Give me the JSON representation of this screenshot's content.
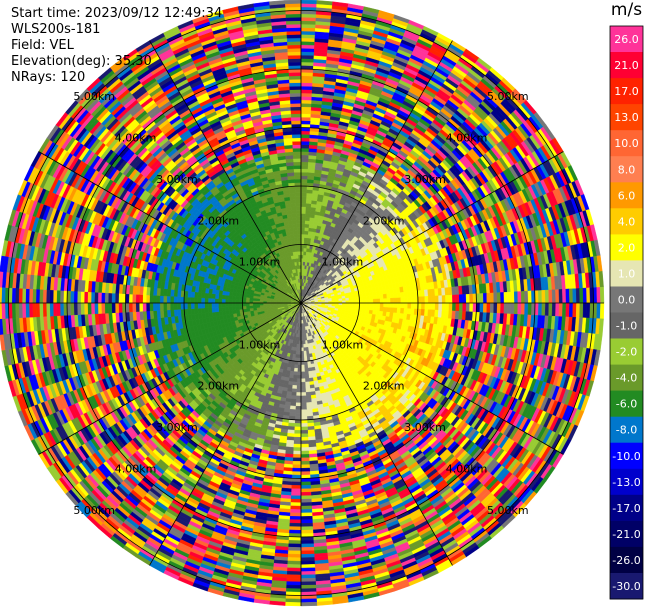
{
  "header": {
    "start_time": "Start time: 2023/09/12 12:49:34",
    "site": "WLS200s-181",
    "field": "Field: VEL",
    "elevation": "Elevation(deg): 35.30",
    "nrays": "NRays: 120"
  },
  "chart_data": {
    "type": "polar",
    "field": "VEL",
    "nrays": 120,
    "elevation_deg": 35.3,
    "max_range_km": 5.9,
    "range_rings": [
      {
        "range_km": 1,
        "label": "1.00km"
      },
      {
        "range_km": 2,
        "label": "2.00km"
      },
      {
        "range_km": 3,
        "label": "3.00km"
      },
      {
        "range_km": 4,
        "label": "4.00km"
      },
      {
        "range_km": 5,
        "label": "5.00km"
      }
    ],
    "spokes_deg": [
      0,
      30,
      60,
      90,
      120,
      150
    ],
    "velocity_pattern": {
      "toward_min_mps": -6,
      "away_max_mps": 4,
      "coherent_range_km": [
        0.2,
        2.6
      ],
      "noise_beyond_km": 2.6
    },
    "colorbar": {
      "unit": "m/s",
      "ticks": [
        "26.0",
        "21.0",
        "17.0",
        "13.0",
        "10.0",
        "8.0",
        "6.0",
        "4.0",
        "2.0",
        "1.0",
        "0.0",
        "-1.0",
        "-2.0",
        "-4.0",
        "-6.0",
        "-8.0",
        "-10.0",
        "-13.0",
        "-17.0",
        "-21.0",
        "-26.0",
        "-30.0"
      ],
      "colors": [
        "#ff3399",
        "#ff0033",
        "#ff2200",
        "#ff4400",
        "#ff6633",
        "#ff7f50",
        "#ff9900",
        "#ffcc00",
        "#ffff00",
        "#e6e6b3",
        "#777777",
        "#666666",
        "#99cc33",
        "#6a9a2a",
        "#228b22",
        "#0077cc",
        "#0000ff",
        "#0000cc",
        "#000088",
        "#000066",
        "#000044",
        "#191970"
      ]
    }
  }
}
